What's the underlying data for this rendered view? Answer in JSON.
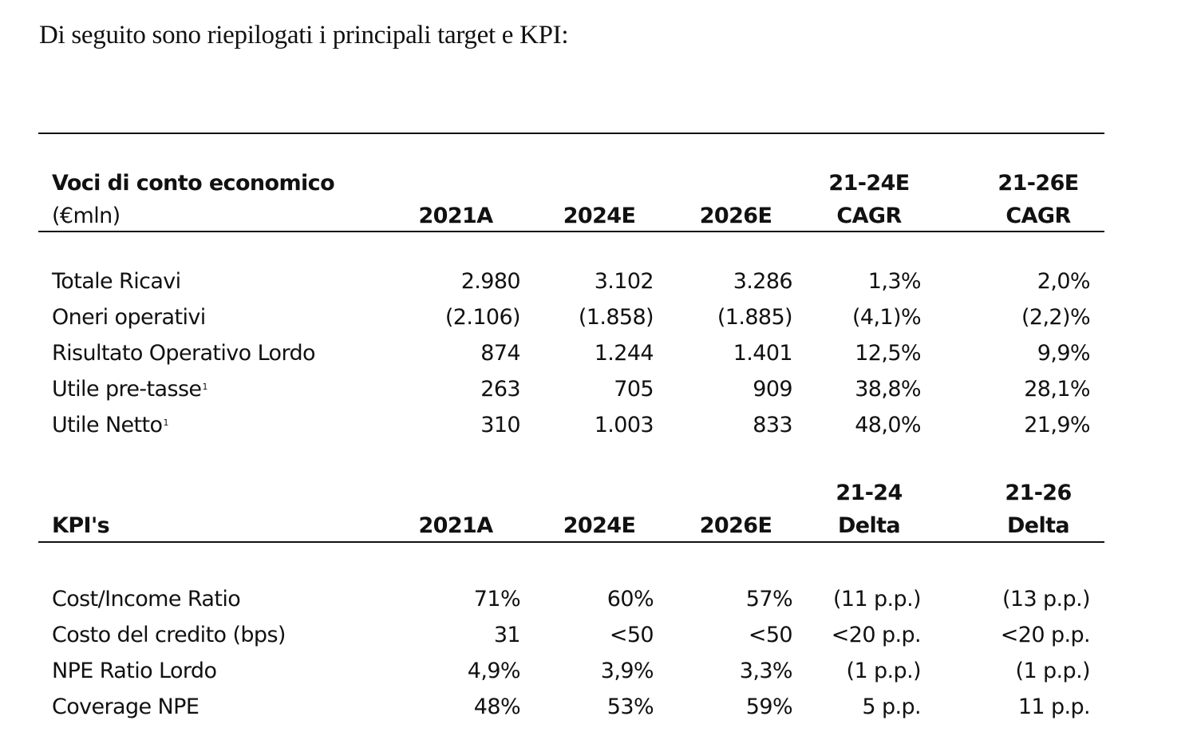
{
  "intro": "Di seguito sono riepilogati i principali target e KPI:",
  "income": {
    "header_line1": "Voci di conto economico",
    "header_line2": "(€mln)",
    "col_2021": "2021A",
    "col_2024": "2024E",
    "col_2026": "2026E",
    "col_cagr24_top": "21-24E",
    "col_cagr24_bottom": "CAGR",
    "col_cagr26_top": "21-26E",
    "col_cagr26_bottom": "CAGR",
    "rows": [
      {
        "label": "Totale Ricavi",
        "sup": "",
        "v2021": "2.980",
        "v2024": "3.102",
        "v2026": "3.286",
        "c24": "1,3%",
        "c26": "2,0%"
      },
      {
        "label": "Oneri operativi",
        "sup": "",
        "v2021": "(2.106)",
        "v2024": "(1.858)",
        "v2026": "(1.885)",
        "c24": "(4,1)%",
        "c26": "(2,2)%"
      },
      {
        "label": "Risultato Operativo Lordo",
        "sup": "",
        "v2021": "874",
        "v2024": "1.244",
        "v2026": "1.401",
        "c24": "12,5%",
        "c26": "9,9%"
      },
      {
        "label": "Utile pre-tasse",
        "sup": "1",
        "v2021": "263",
        "v2024": "705",
        "v2026": "909",
        "c24": "38,8%",
        "c26": "28,1%"
      },
      {
        "label": "Utile Netto",
        "sup": "1",
        "v2021": "310",
        "v2024": "1.003",
        "v2026": "833",
        "c24": "48,0%",
        "c26": "21,9%"
      }
    ]
  },
  "kpi": {
    "header": "KPI's",
    "col_2021": "2021A",
    "col_2024": "2024E",
    "col_2026": "2026E",
    "col_d24_top": "21-24",
    "col_d24_bottom": "Delta",
    "col_d26_top": "21-26",
    "col_d26_bottom": "Delta",
    "rows": [
      {
        "label": "Cost/Income Ratio",
        "v2021": "71%",
        "v2024": "60%",
        "v2026": "57%",
        "d24": "(11 p.p.)",
        "d26": "(13 p.p.)"
      },
      {
        "label": "Costo del credito (bps)",
        "v2021": "31",
        "v2024": "<50",
        "v2026": "<50",
        "d24": "<20 p.p.",
        "d26": "<20 p.p."
      },
      {
        "label": "NPE Ratio Lordo",
        "v2021": "4,9%",
        "v2024": "3,9%",
        "v2026": "3,3%",
        "d24": "(1 p.p.)",
        "d26": "(1 p.p.)"
      },
      {
        "label": "Coverage NPE",
        "v2021": "48%",
        "v2024": "53%",
        "v2026": "59%",
        "d24": "5 p.p.",
        "d26": "11 p.p."
      }
    ]
  }
}
